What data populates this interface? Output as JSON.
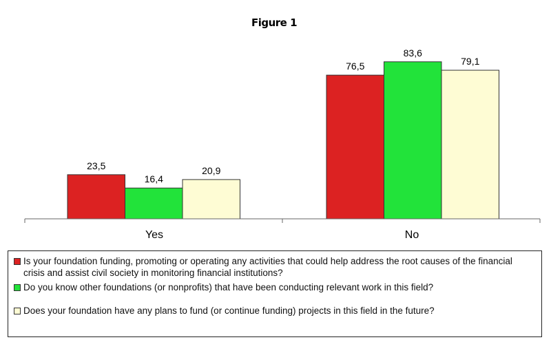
{
  "chart_data": {
    "type": "bar",
    "title": "Figure 1",
    "categories": [
      "Yes",
      "No"
    ],
    "series": [
      {
        "name": "Is your foundation funding, promoting or operating any activities that could help address the root causes of the financial crisis and assist civil society in monitoring financial institutions?",
        "values": [
          23.5,
          76.5
        ],
        "labels": [
          "23,5",
          "76,5"
        ],
        "color": "#dc2222"
      },
      {
        "name": "Do you know other foundations (or nonprofits) that have been conducting relevant work in this field?",
        "values": [
          16.4,
          83.6
        ],
        "labels": [
          "16,4",
          "83,6"
        ],
        "color": "#22e33a"
      },
      {
        "name": "Does your foundation have any plans to fund (or continue funding) projects in this field in the future?",
        "values": [
          20.9,
          79.1
        ],
        "labels": [
          "20,9",
          "79,1"
        ],
        "color": "#fefcd4"
      }
    ],
    "ylim": [
      0,
      100
    ],
    "grid": false,
    "legend_position": "bottom"
  }
}
